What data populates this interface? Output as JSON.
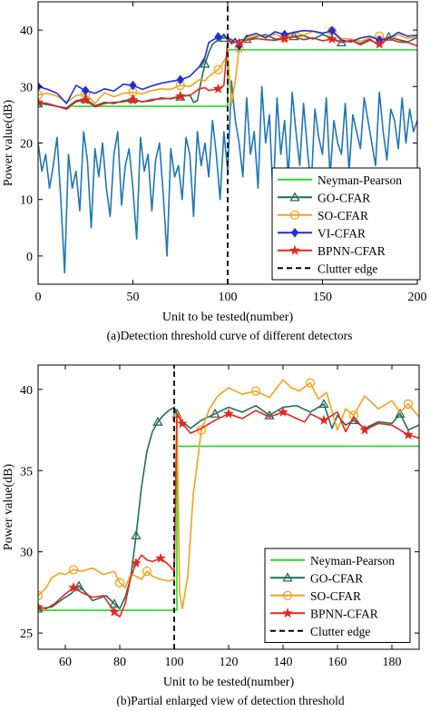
{
  "chart_data": [
    {
      "type": "line",
      "xlabel": "Unit to be tested(number)",
      "ylabel": "Power value(dB)",
      "caption": "(a)Detection threshold curve of different detectors",
      "xlim": [
        0,
        200
      ],
      "ylim": [
        -5,
        45
      ],
      "xticks": [
        0,
        50,
        100,
        150,
        200
      ],
      "xtick_labels": [
        "0",
        "50",
        "100",
        "150",
        "200"
      ],
      "yticks": [
        0,
        10,
        20,
        30,
        40
      ],
      "legend_position": "bottom-right",
      "clutter_edge_x": 100,
      "series": [
        {
          "name": "Neyman-Pearson",
          "color": "#22dd22",
          "marker": "none",
          "dash": "solid",
          "x": [
            18,
            100,
            100,
            112,
            112,
            200
          ],
          "y": [
            26.5,
            26.5,
            36.5,
            36.5,
            36.5,
            36.5
          ]
        },
        {
          "name": "GO-CFAR",
          "color": "#1f6e57",
          "marker": "triangle",
          "dash": "solid",
          "x": [
            0,
            5,
            10,
            15,
            20,
            25,
            30,
            35,
            40,
            45,
            50,
            55,
            60,
            65,
            70,
            75,
            80,
            82,
            84,
            86,
            88,
            90,
            92,
            94,
            96,
            98,
            100,
            102,
            104,
            106,
            110,
            115,
            120,
            125,
            130,
            135,
            140,
            145,
            150,
            155,
            160,
            165,
            170,
            175,
            180,
            185,
            190,
            195,
            200
          ],
          "y": [
            27,
            26.8,
            26.5,
            26.2,
            27.5,
            27.8,
            26.6,
            27.2,
            27,
            27.5,
            27.8,
            27.3,
            27.5,
            28,
            27.8,
            28.2,
            28.5,
            27.2,
            27.5,
            31,
            34,
            36,
            37.5,
            38,
            38.5,
            38.6,
            38.7,
            38.3,
            37.8,
            38.2,
            38.4,
            38.8,
            39.2,
            38.4,
            38.5,
            38.9,
            39,
            38.4,
            39.2,
            38.6,
            37.8,
            38.1,
            37.6,
            38.4,
            37.2,
            38.8,
            38.3,
            37.9,
            38.7
          ]
        },
        {
          "name": "SO-CFAR",
          "color": "#f5a21a",
          "marker": "circle",
          "dash": "solid",
          "x": [
            0,
            5,
            10,
            15,
            20,
            25,
            30,
            35,
            40,
            45,
            50,
            55,
            60,
            65,
            70,
            75,
            80,
            85,
            88,
            90,
            95,
            98,
            100,
            102,
            104,
            106,
            110,
            115,
            120,
            125,
            130,
            135,
            140,
            145,
            150,
            155,
            160,
            165,
            170,
            175,
            180,
            185,
            190,
            195,
            200
          ],
          "y": [
            28.5,
            28.8,
            28.3,
            27.2,
            28.4,
            28.7,
            27,
            28.9,
            28.2,
            28.8,
            29,
            28.7,
            29.3,
            29.6,
            29.5,
            30.2,
            30,
            31.2,
            31,
            31.8,
            33,
            34.5,
            35.5,
            26.8,
            31,
            36.8,
            38.5,
            39,
            38.8,
            39.3,
            38.6,
            39.6,
            39.1,
            39.8,
            39.5,
            39.8,
            38.5,
            38.4,
            38,
            38.6,
            38.9,
            38.3,
            39.2,
            38.5,
            38.8
          ]
        },
        {
          "name": "VI-CFAR",
          "color": "#1f2fd6",
          "marker": "diamond",
          "dash": "solid",
          "x": [
            0,
            5,
            10,
            15,
            20,
            25,
            30,
            35,
            40,
            45,
            50,
            55,
            60,
            65,
            70,
            75,
            80,
            85,
            88,
            90,
            95,
            98,
            100,
            102,
            104,
            106,
            110,
            115,
            120,
            125,
            130,
            135,
            140,
            145,
            150,
            155,
            160,
            165,
            170,
            175,
            180,
            185,
            190,
            195,
            200
          ],
          "y": [
            30,
            29.5,
            28.8,
            27,
            30.2,
            29.3,
            28.8,
            29.6,
            29.2,
            30.4,
            30.2,
            29.5,
            30.1,
            30.6,
            30.9,
            31.2,
            31.8,
            33.5,
            35.2,
            37.8,
            38.8,
            39,
            38.5,
            37.8,
            38.5,
            37.2,
            38.9,
            39.4,
            38.6,
            39.7,
            39.2,
            39.6,
            39.9,
            39.8,
            39.4,
            39.9,
            38.2,
            37.9,
            38.6,
            38.9,
            38.2,
            38.5,
            39.6,
            38.9,
            39.1
          ]
        },
        {
          "name": "BPNN-CFAR",
          "color": "#e8251f",
          "marker": "star",
          "dash": "solid",
          "x": [
            0,
            5,
            10,
            15,
            20,
            25,
            30,
            35,
            40,
            45,
            50,
            55,
            60,
            65,
            70,
            75,
            80,
            85,
            88,
            90,
            95,
            98,
            100,
            102,
            104,
            106,
            110,
            115,
            120,
            125,
            130,
            135,
            140,
            145,
            150,
            155,
            160,
            165,
            170,
            175,
            180,
            185,
            190,
            195,
            200
          ],
          "y": [
            27.2,
            27,
            26.5,
            26,
            27.3,
            27.6,
            26.4,
            27,
            27.2,
            27.3,
            27.6,
            27.3,
            27.7,
            27.8,
            27.9,
            28.3,
            28.4,
            29.6,
            29.8,
            29.3,
            29.6,
            30.2,
            38.3,
            37.6,
            37.9,
            37.7,
            38.2,
            38.5,
            38.3,
            38.2,
            38.5,
            38.8,
            38.3,
            38.6,
            38.1,
            38.4,
            37.8,
            38.2,
            37.4,
            38.2,
            37.5,
            38.5,
            37.9,
            37.8,
            37.2
          ]
        },
        {
          "name": "Clutter edge",
          "color": "#000000",
          "marker": "none",
          "dash": "dashed",
          "x": [
            100,
            100
          ],
          "y": [
            -5,
            45
          ]
        },
        {
          "name": "clutter",
          "color": "#1f77b4",
          "marker": "none",
          "dash": "solid",
          "in_legend": false,
          "x": [
            0,
            2,
            4,
            6,
            8,
            10,
            12,
            14,
            16,
            18,
            20,
            22,
            24,
            26,
            28,
            30,
            32,
            34,
            36,
            38,
            40,
            42,
            44,
            46,
            48,
            50,
            52,
            54,
            56,
            58,
            60,
            62,
            64,
            66,
            68,
            70,
            72,
            74,
            76,
            78,
            80,
            82,
            84,
            86,
            88,
            90,
            92,
            94,
            96,
            98,
            100,
            102,
            104,
            106,
            108,
            110,
            112,
            114,
            116,
            118,
            120,
            122,
            124,
            126,
            128,
            130,
            132,
            134,
            136,
            138,
            140,
            142,
            144,
            146,
            148,
            150,
            152,
            154,
            156,
            158,
            160,
            162,
            164,
            166,
            168,
            170,
            172,
            174,
            176,
            178,
            180,
            182,
            184,
            186,
            188,
            190,
            192,
            194,
            196,
            198,
            200
          ],
          "y": [
            20,
            15,
            18,
            12,
            16,
            21,
            10,
            -3,
            18,
            12,
            15,
            8,
            22,
            17,
            5,
            19,
            14,
            20,
            12,
            7,
            18,
            22,
            9,
            16,
            19,
            12,
            3,
            21,
            15,
            18,
            8,
            17,
            20,
            11,
            0,
            19,
            14,
            16,
            10,
            21,
            18,
            7,
            22,
            16,
            20,
            14,
            24,
            18,
            10,
            22,
            15,
            31,
            24,
            20,
            14,
            28,
            18,
            22,
            12,
            30,
            20,
            25,
            10,
            28,
            18,
            24,
            14,
            29,
            22,
            16,
            27,
            19,
            12,
            26,
            21,
            18,
            28,
            14,
            24,
            20,
            18,
            27,
            15,
            25,
            22,
            19,
            28,
            24,
            20,
            16,
            29,
            22,
            17,
            26,
            24,
            19,
            28,
            20,
            26,
            22,
            24
          ]
        }
      ]
    },
    {
      "type": "line",
      "xlabel": "Unit to be tested(number)",
      "ylabel": "Power value(dB)",
      "caption": "(b)Partial enlarged view of detection threshold",
      "xlim": [
        50,
        190
      ],
      "ylim": [
        24,
        41.5
      ],
      "xticks": [
        60,
        80,
        100,
        120,
        140,
        160,
        180
      ],
      "yticks": [
        25,
        30,
        35,
        40
      ],
      "legend_position": "bottom-right",
      "clutter_edge_x": 100,
      "series": [
        {
          "name": "Neyman-Pearson",
          "color": "#22dd22",
          "marker": "none",
          "dash": "solid",
          "x": [
            50,
            100,
            101,
            101,
            190
          ],
          "y": [
            26.4,
            26.4,
            26.4,
            36.5,
            36.5
          ]
        },
        {
          "name": "GO-CFAR",
          "color": "#1f6e57",
          "marker": "triangle",
          "dash": "solid",
          "x": [
            50,
            55,
            60,
            62,
            65,
            68,
            70,
            75,
            78,
            80,
            82,
            84,
            86,
            88,
            90,
            92,
            94,
            96,
            98,
            100,
            101,
            103,
            106,
            110,
            115,
            120,
            125,
            130,
            135,
            140,
            145,
            150,
            155,
            158,
            160,
            163,
            166,
            170,
            175,
            180,
            183,
            186,
            190
          ],
          "y": [
            26.5,
            26.6,
            27.2,
            27.4,
            27.9,
            27.4,
            27,
            27.3,
            26.8,
            26.5,
            27.2,
            28.4,
            31,
            34,
            36.2,
            37.4,
            38,
            38.4,
            38.7,
            38.9,
            38.5,
            38,
            37.6,
            38.1,
            38.5,
            38.9,
            38.6,
            39,
            38.4,
            38.9,
            39,
            38.6,
            39.1,
            37.6,
            38.4,
            37.8,
            38.1,
            37.6,
            38,
            37.9,
            38.5,
            37.5,
            37.8
          ]
        },
        {
          "name": "SO-CFAR",
          "color": "#f5a21a",
          "marker": "circle",
          "dash": "solid",
          "x": [
            50,
            53,
            55,
            58,
            60,
            63,
            66,
            70,
            74,
            78,
            80,
            82,
            84,
            86,
            88,
            90,
            92,
            95,
            98,
            100,
            101,
            102,
            103,
            105,
            107,
            110,
            113,
            116,
            120,
            125,
            130,
            135,
            140,
            143,
            146,
            150,
            153,
            156,
            160,
            163,
            166,
            170,
            175,
            180,
            183,
            186,
            190
          ],
          "y": [
            27.3,
            27.8,
            28.4,
            28.7,
            28.6,
            28.9,
            28.8,
            29,
            28.6,
            28.8,
            28.1,
            27.8,
            28.6,
            28.5,
            28.3,
            28.8,
            28.5,
            28.3,
            28.2,
            28.3,
            38.2,
            27.5,
            26.5,
            28.5,
            33.5,
            37.5,
            38.8,
            39.6,
            40.1,
            39.7,
            39.9,
            39.5,
            40.6,
            40.1,
            39.9,
            40.4,
            39.4,
            39.8,
            37.5,
            38.8,
            38.4,
            39.6,
            38.8,
            39.3,
            38.6,
            39.1,
            38.3
          ]
        },
        {
          "name": "BPNN-CFAR",
          "color": "#e8251f",
          "marker": "star",
          "dash": "solid",
          "x": [
            50,
            53,
            56,
            60,
            63,
            66,
            70,
            74,
            78,
            80,
            82,
            84,
            86,
            88,
            90,
            92,
            95,
            98,
            100,
            101,
            103,
            106,
            110,
            115,
            120,
            125,
            130,
            135,
            140,
            145,
            148,
            150,
            155,
            160,
            163,
            166,
            170,
            175,
            180,
            183,
            186,
            190
          ],
          "y": [
            26.6,
            26.5,
            26.8,
            27.4,
            27.8,
            27.5,
            27.2,
            27.3,
            26.3,
            26,
            26.8,
            28.4,
            29.3,
            29.8,
            29.5,
            29.4,
            29.6,
            29.2,
            28.8,
            38.5,
            37.9,
            37.3,
            37.6,
            38.1,
            38.5,
            38.2,
            38.7,
            38.3,
            38.6,
            38.2,
            38,
            38.5,
            38.1,
            38.6,
            37.4,
            38.3,
            37.5,
            37.9,
            37.8,
            37.5,
            37.2,
            37
          ]
        },
        {
          "name": "Clutter edge",
          "color": "#000000",
          "marker": "none",
          "dash": "dashed",
          "x": [
            100,
            100
          ],
          "y": [
            24,
            41.5
          ]
        }
      ]
    }
  ]
}
